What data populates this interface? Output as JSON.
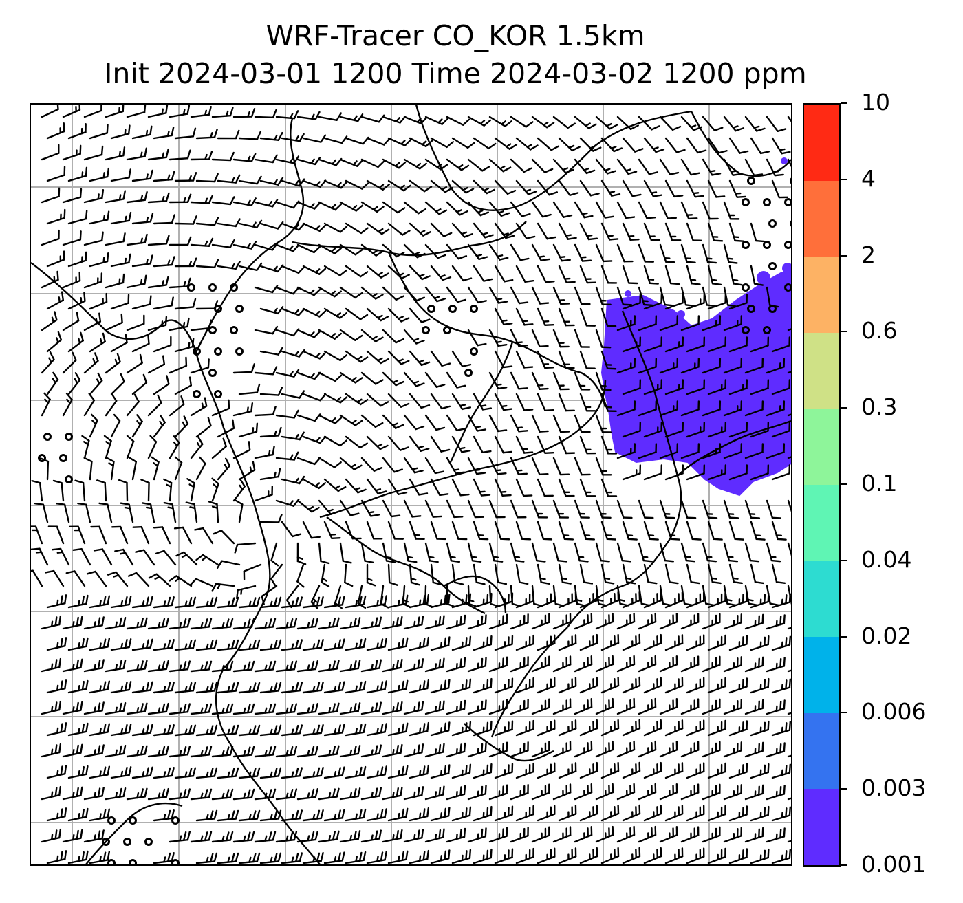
{
  "title_lines": [
    "WRF-Tracer CO_KOR 1.5km",
    "Init 2024-03-01 1200 Time 2024-03-02 1200 ppm"
  ],
  "colorbar": {
    "levels": [
      "0.001",
      "0.003",
      "0.006",
      "0.02",
      "0.04",
      "0.1",
      "0.3",
      "0.6",
      "2",
      "4",
      "10"
    ],
    "colors": [
      "#5f2cff",
      "#3473f0",
      "#00b2ea",
      "#2ddcd1",
      "#5ff5b4",
      "#8ef59a",
      "#cfe186",
      "#fdb264",
      "#ff6f3a",
      "#ff2a14"
    ]
  },
  "map": {
    "tracer_plume_color": "#5f2cff",
    "gridline_color": "#b0b0b0",
    "coastline_color": "#000000",
    "wind_barb_color": "#000000",
    "features": [
      "wind-barbs",
      "calm-wind-circles",
      "coastlines",
      "lat-lon-gridlines",
      "tracer-concentration-fill"
    ]
  }
}
